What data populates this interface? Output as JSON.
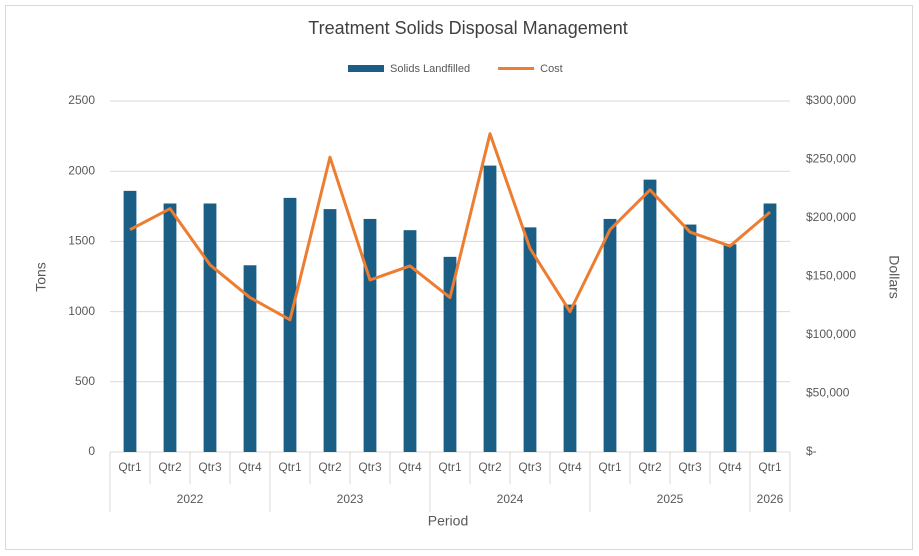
{
  "chart_data": {
    "type": "bar",
    "title": "Treatment Solids Disposal Management",
    "x_label": "Period",
    "y_label": "Tons",
    "y2_label": "Dollars",
    "category_groups": [
      {
        "name": "2022",
        "categories": [
          "Qtr1",
          "Qtr2",
          "Qtr3",
          "Qtr4"
        ]
      },
      {
        "name": "2023",
        "categories": [
          "Qtr1",
          "Qtr2",
          "Qtr3",
          "Qtr4"
        ]
      },
      {
        "name": "2024",
        "categories": [
          "Qtr1",
          "Qtr2",
          "Qtr3",
          "Qtr4"
        ]
      },
      {
        "name": "2025",
        "categories": [
          "Qtr1",
          "Qtr2",
          "Qtr3",
          "Qtr4"
        ]
      },
      {
        "name": "2026",
        "categories": [
          "Qtr1"
        ]
      }
    ],
    "series": [
      {
        "name": "Solids Landfilled",
        "type": "bar",
        "color": "#1b5e85",
        "values": [
          1860,
          1770,
          1770,
          1330,
          1810,
          1730,
          1660,
          1580,
          1390,
          2040,
          1600,
          1050,
          1660,
          1940,
          1620,
          1480,
          1770
        ]
      },
      {
        "name": "Cost",
        "type": "line",
        "axis": "y2",
        "color": "#ed7d31",
        "values": [
          190000,
          208000,
          160000,
          132000,
          113000,
          252000,
          147000,
          159000,
          132000,
          272000,
          174000,
          120000,
          190000,
          224000,
          188000,
          176000,
          205000
        ]
      }
    ],
    "ylim": [
      0,
      2500
    ],
    "yticks": [
      0,
      500,
      1000,
      1500,
      2000,
      2500
    ],
    "y2lim": [
      0,
      300000
    ],
    "y2ticks": [
      {
        "value": 0,
        "label": "$-"
      },
      {
        "value": 50000,
        "label": "$50,000"
      },
      {
        "value": 100000,
        "label": "$100,000"
      },
      {
        "value": 150000,
        "label": "$150,000"
      },
      {
        "value": 200000,
        "label": "$200,000"
      },
      {
        "value": 250000,
        "label": "$250,000"
      },
      {
        "value": 300000,
        "label": "$300,000"
      }
    ],
    "grid": true,
    "legend": "top"
  }
}
